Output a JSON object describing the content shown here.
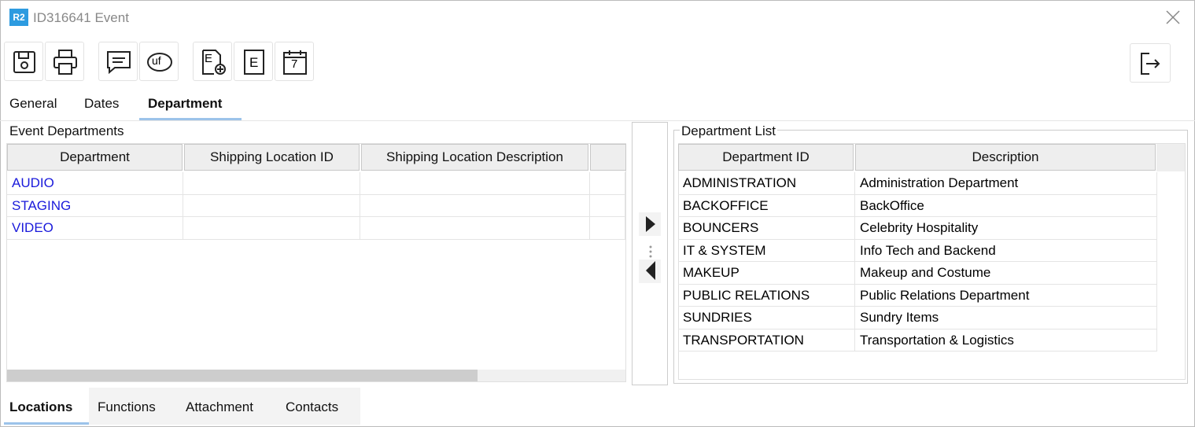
{
  "window": {
    "app_badge": "R2",
    "title": "ID316641 Event"
  },
  "toolbar": {
    "glyphs": [
      "uf",
      "E",
      "E",
      "7"
    ]
  },
  "tabs": [
    "General",
    "Dates",
    "Department"
  ],
  "event_departments": {
    "title": "Event Departments",
    "columns": [
      "Department",
      "Shipping Location ID",
      "Shipping Location Description"
    ],
    "rows": [
      "AUDIO",
      "STAGING",
      "VIDEO"
    ]
  },
  "department_list": {
    "title": "Department List",
    "columns": [
      "Department ID",
      "Description"
    ],
    "rows": [
      [
        "ADMINISTRATION",
        "Administration Department"
      ],
      [
        "BACKOFFICE",
        "BackOffice"
      ],
      [
        "BOUNCERS",
        "Celebrity Hospitality"
      ],
      [
        "IT & SYSTEM",
        "Info Tech and Backend"
      ],
      [
        "MAKEUP",
        "Makeup and Costume"
      ],
      [
        "PUBLIC RELATIONS",
        "Public Relations Department"
      ],
      [
        "SUNDRIES",
        "Sundry Items"
      ],
      [
        "TRANSPORTATION",
        "Transportation & Logistics"
      ]
    ]
  },
  "bottom_tabs": [
    "Locations",
    "Functions",
    "Attachment",
    "Contacts"
  ]
}
